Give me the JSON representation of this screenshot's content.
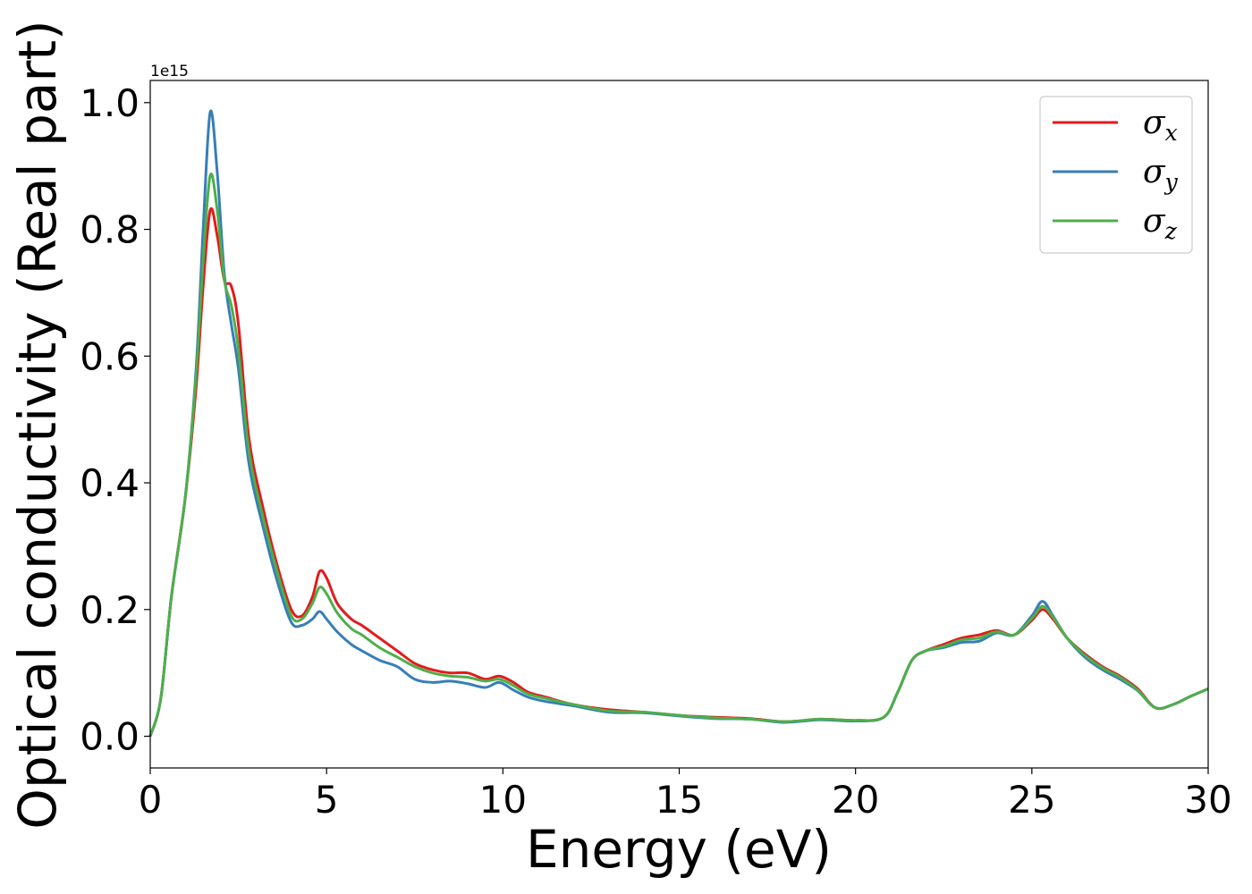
{
  "chart_data": {
    "type": "line",
    "xlabel": "Energy (eV)",
    "ylabel": "Optical conductivity (Real part)",
    "y_offset_label": "1e15",
    "xlim": [
      0,
      30
    ],
    "ylim": [
      -0.05,
      1.035
    ],
    "xticks": [
      0,
      5,
      10,
      15,
      20,
      25,
      30
    ],
    "xtick_labels": [
      "0",
      "5",
      "10",
      "15",
      "20",
      "25",
      "30"
    ],
    "yticks": [
      0.0,
      0.2,
      0.4,
      0.6,
      0.8,
      1.0
    ],
    "ytick_labels": [
      "0.0",
      "0.2",
      "0.4",
      "0.6",
      "0.8",
      "1.0"
    ],
    "grid": false,
    "legend_position": "top-right",
    "series": [
      {
        "name": "σx",
        "symbol": "σ",
        "subscript": "x",
        "color": "#e41a1c",
        "x": [
          0,
          0.3,
          0.6,
          1.0,
          1.3,
          1.5,
          1.7,
          1.9,
          2.1,
          2.3,
          2.5,
          2.8,
          3.2,
          3.6,
          4.0,
          4.3,
          4.6,
          4.8,
          5.0,
          5.3,
          5.7,
          6.0,
          6.5,
          7.0,
          7.5,
          8.0,
          8.5,
          9.0,
          9.5,
          9.9,
          10.3,
          10.7,
          11.2,
          12.0,
          13.0,
          14.0,
          15.0,
          16.0,
          17.0,
          18.0,
          19.0,
          20.0,
          20.8,
          21.2,
          21.6,
          22.0,
          22.5,
          23.0,
          23.5,
          24.0,
          24.5,
          25.0,
          25.3,
          25.6,
          26.0,
          26.5,
          27.0,
          27.5,
          28.0,
          28.5,
          29.0,
          29.5,
          30.0
        ],
        "y": [
          0.0,
          0.06,
          0.22,
          0.38,
          0.55,
          0.71,
          0.83,
          0.79,
          0.72,
          0.71,
          0.65,
          0.47,
          0.36,
          0.27,
          0.2,
          0.19,
          0.22,
          0.26,
          0.25,
          0.21,
          0.185,
          0.175,
          0.155,
          0.135,
          0.115,
          0.105,
          0.1,
          0.1,
          0.09,
          0.095,
          0.085,
          0.07,
          0.062,
          0.05,
          0.042,
          0.038,
          0.033,
          0.03,
          0.028,
          0.023,
          0.027,
          0.025,
          0.03,
          0.07,
          0.12,
          0.135,
          0.145,
          0.155,
          0.16,
          0.167,
          0.16,
          0.183,
          0.2,
          0.185,
          0.155,
          0.13,
          0.11,
          0.095,
          0.075,
          0.045,
          0.05,
          0.063,
          0.075
        ]
      },
      {
        "name": "σy",
        "symbol": "σ",
        "subscript": "y",
        "color": "#377eb8",
        "x": [
          0,
          0.3,
          0.6,
          1.0,
          1.3,
          1.5,
          1.7,
          1.9,
          2.1,
          2.3,
          2.5,
          2.8,
          3.2,
          3.6,
          4.0,
          4.3,
          4.6,
          4.8,
          5.0,
          5.3,
          5.7,
          6.0,
          6.5,
          7.0,
          7.5,
          8.0,
          8.5,
          9.0,
          9.5,
          9.9,
          10.3,
          10.7,
          11.2,
          12.0,
          13.0,
          14.0,
          15.0,
          16.0,
          17.0,
          18.0,
          19.0,
          20.0,
          20.8,
          21.2,
          21.6,
          22.0,
          22.5,
          23.0,
          23.5,
          24.0,
          24.5,
          25.0,
          25.3,
          25.6,
          26.0,
          26.5,
          27.0,
          27.5,
          28.0,
          28.5,
          29.0,
          29.5,
          30.0
        ],
        "y": [
          0.0,
          0.06,
          0.22,
          0.38,
          0.58,
          0.8,
          0.985,
          0.89,
          0.73,
          0.65,
          0.58,
          0.43,
          0.33,
          0.245,
          0.18,
          0.175,
          0.185,
          0.197,
          0.185,
          0.165,
          0.145,
          0.135,
          0.12,
          0.11,
          0.09,
          0.085,
          0.087,
          0.083,
          0.077,
          0.085,
          0.073,
          0.062,
          0.055,
          0.048,
          0.038,
          0.037,
          0.032,
          0.028,
          0.027,
          0.022,
          0.026,
          0.024,
          0.03,
          0.07,
          0.12,
          0.135,
          0.14,
          0.148,
          0.15,
          0.163,
          0.16,
          0.19,
          0.213,
          0.19,
          0.155,
          0.125,
          0.105,
          0.09,
          0.072,
          0.045,
          0.05,
          0.063,
          0.075
        ]
      },
      {
        "name": "σz",
        "symbol": "σ",
        "subscript": "z",
        "color": "#4daf4a",
        "x": [
          0,
          0.3,
          0.6,
          1.0,
          1.3,
          1.5,
          1.7,
          1.9,
          2.1,
          2.3,
          2.5,
          2.8,
          3.2,
          3.6,
          4.0,
          4.3,
          4.6,
          4.8,
          5.0,
          5.3,
          5.7,
          6.0,
          6.5,
          7.0,
          7.5,
          8.0,
          8.5,
          9.0,
          9.5,
          9.9,
          10.3,
          10.7,
          11.2,
          12.0,
          13.0,
          14.0,
          15.0,
          16.0,
          17.0,
          18.0,
          19.0,
          20.0,
          20.8,
          21.2,
          21.6,
          22.0,
          22.5,
          23.0,
          23.5,
          24.0,
          24.5,
          25.0,
          25.3,
          25.6,
          26.0,
          26.5,
          27.0,
          27.5,
          28.0,
          28.5,
          29.0,
          29.5,
          30.0
        ],
        "y": [
          0.0,
          0.06,
          0.22,
          0.38,
          0.57,
          0.75,
          0.885,
          0.83,
          0.72,
          0.68,
          0.61,
          0.45,
          0.345,
          0.26,
          0.19,
          0.185,
          0.21,
          0.235,
          0.225,
          0.195,
          0.17,
          0.16,
          0.14,
          0.125,
          0.11,
          0.1,
          0.095,
          0.093,
          0.087,
          0.09,
          0.08,
          0.067,
          0.06,
          0.05,
          0.04,
          0.038,
          0.033,
          0.029,
          0.027,
          0.023,
          0.027,
          0.025,
          0.03,
          0.07,
          0.12,
          0.135,
          0.142,
          0.152,
          0.155,
          0.165,
          0.16,
          0.186,
          0.205,
          0.188,
          0.155,
          0.128,
          0.108,
          0.093,
          0.073,
          0.045,
          0.05,
          0.063,
          0.075
        ]
      }
    ]
  }
}
